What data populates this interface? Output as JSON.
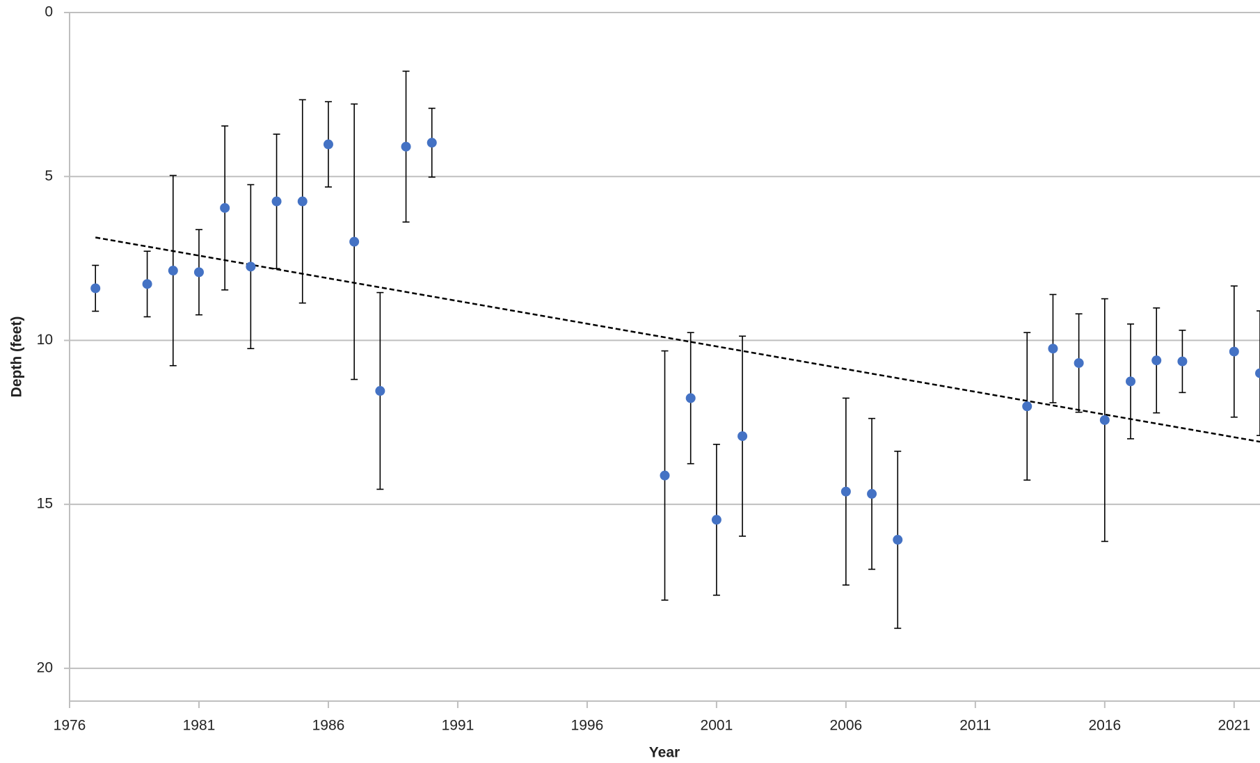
{
  "chart_data": {
    "type": "scatter",
    "x_label": "Year",
    "y_label": "Depth (feet)",
    "xlim": [
      1976,
      2022
    ],
    "xticks": [
      1976,
      1981,
      1986,
      1991,
      1996,
      2001,
      2006,
      2011,
      2016,
      2021
    ],
    "ylim": [
      0,
      21
    ],
    "yticks": [
      0,
      5,
      10,
      15,
      20
    ],
    "y_inverted": true,
    "grid": true,
    "series": [
      {
        "color": "#4472c4",
        "x": [
          1977,
          1979,
          1980,
          1981,
          1982,
          1983,
          1984,
          1985,
          1986,
          1987,
          1988,
          1989,
          1990,
          1999,
          2000,
          2001,
          2002,
          2006,
          2007,
          2008,
          2013,
          2014,
          2015,
          2016,
          2017,
          2018,
          2019,
          2021,
          2022
        ],
        "values": [
          8.41,
          8.28,
          7.87,
          7.92,
          5.96,
          7.75,
          5.76,
          5.76,
          4.02,
          6.99,
          11.54,
          4.09,
          3.97,
          14.12,
          11.76,
          15.47,
          12.92,
          14.61,
          14.68,
          16.08,
          12.01,
          10.25,
          10.69,
          12.43,
          11.25,
          10.61,
          10.64,
          10.34,
          11.0
        ],
        "errors": [
          0.7,
          1.0,
          2.9,
          1.3,
          2.5,
          2.5,
          2.05,
          3.1,
          1.3,
          4.2,
          3.0,
          2.3,
          1.05,
          3.8,
          2.0,
          2.3,
          3.05,
          2.85,
          2.3,
          2.7,
          2.25,
          1.65,
          1.5,
          3.7,
          1.75,
          1.6,
          0.95,
          2.0,
          1.9
        ]
      }
    ],
    "trendline": {
      "color": "#000000",
      "x": [
        1977,
        2022
      ],
      "values": [
        6.86,
        13.09
      ]
    }
  }
}
